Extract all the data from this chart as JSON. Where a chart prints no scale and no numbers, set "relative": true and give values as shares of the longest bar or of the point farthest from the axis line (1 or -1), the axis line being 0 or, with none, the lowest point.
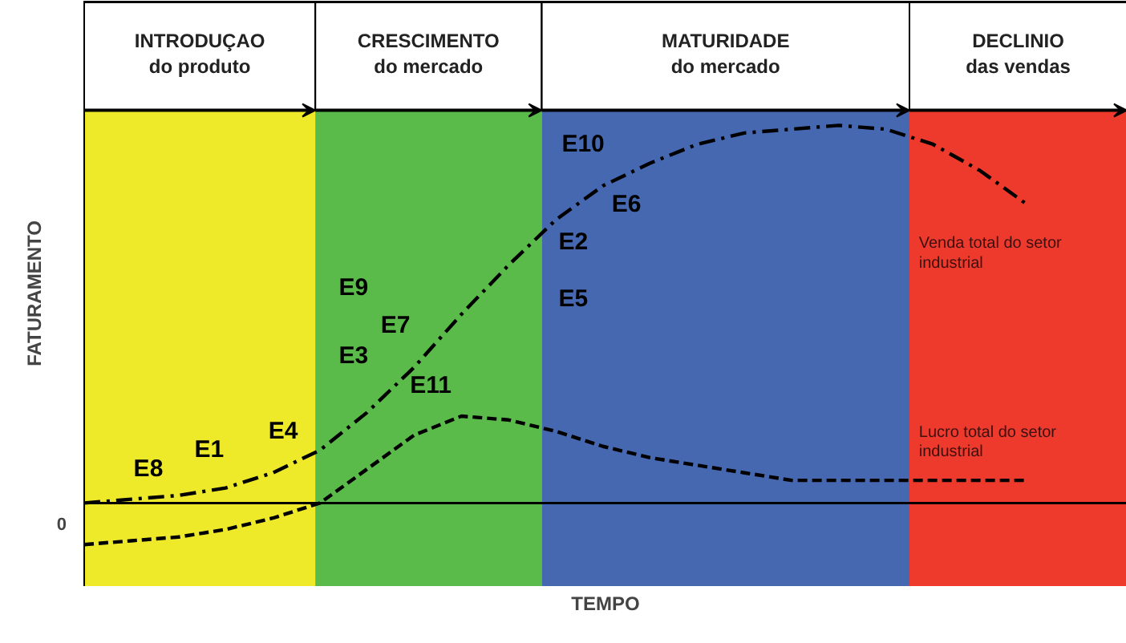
{
  "chart_data": {
    "type": "line",
    "relative": true,
    "xlabel": "TEMPO",
    "ylabel": "FATURAMENTO",
    "tick_labels": "y",
    "grid": false,
    "legend": false,
    "marker": "none",
    "categories": [
      null,
      null,
      null,
      null,
      null,
      null,
      null,
      null,
      null,
      null,
      null,
      null,
      null,
      null,
      null,
      null,
      null,
      null,
      null,
      null,
      null
    ],
    "series": [
      {
        "name": "Venda total do setor industrial",
        "color": "#000000",
        "line_style": "dashdot",
        "values": [
          0.0,
          0.01,
          0.02,
          0.04,
          0.08,
          0.14,
          0.24,
          0.36,
          0.5,
          0.63,
          0.75,
          0.84,
          0.9,
          0.95,
          0.98,
          0.99,
          1.0,
          0.99,
          0.95,
          0.88,
          0.79
        ]
      },
      {
        "name": "Lucro total do setor industrial",
        "color": "#000000",
        "line_style": "dashed",
        "values": [
          -0.11,
          -0.1,
          -0.09,
          -0.07,
          -0.04,
          0.0,
          0.09,
          0.18,
          0.23,
          0.22,
          0.19,
          0.15,
          0.12,
          0.1,
          0.08,
          0.06,
          0.06,
          0.06,
          0.06,
          0.06,
          0.06
        ]
      }
    ],
    "annotations": [
      "INTRODUÇAO\ndo produto",
      "CRESCIMENTO\ndo mercado",
      "MATURIDADE\ndo mercado",
      "DECLINIO\ndas vendas",
      "E10",
      "E6",
      "E2",
      "E5",
      "E9",
      "E7",
      "E3",
      "E11",
      "E4",
      "E1",
      "E8",
      "0"
    ]
  }
}
